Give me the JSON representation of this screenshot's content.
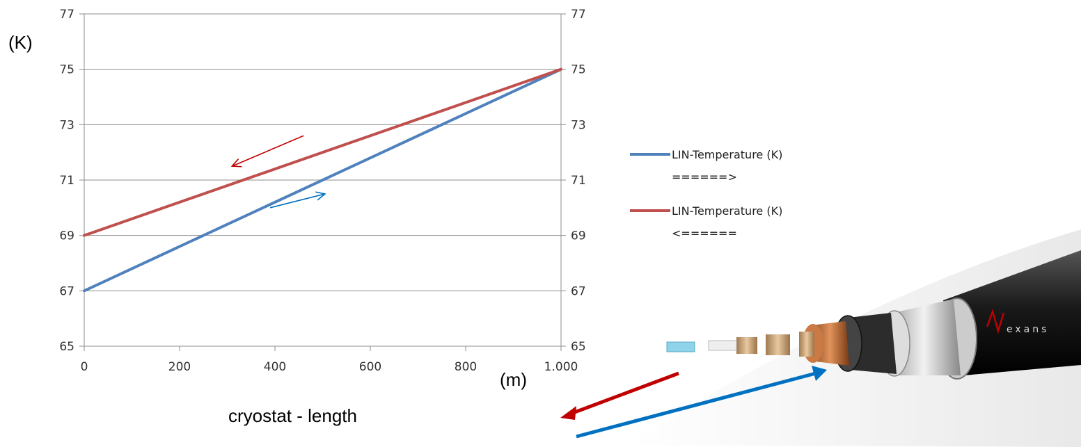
{
  "chart_data": {
    "type": "line",
    "title": "",
    "xlabel": "cryostat - length",
    "ylabel": "",
    "x_unit_label": "(m)",
    "y_unit_label": "(K)",
    "xlim": [
      0,
      1000
    ],
    "ylim": [
      65,
      77
    ],
    "x_ticks": [
      {
        "value": 0,
        "label": "0"
      },
      {
        "value": 200,
        "label": "200"
      },
      {
        "value": 400,
        "label": "400"
      },
      {
        "value": 600,
        "label": "600"
      },
      {
        "value": 800,
        "label": "800"
      },
      {
        "value": 1000,
        "label": "1.000"
      }
    ],
    "y_ticks": [
      {
        "value": 65,
        "label": "65"
      },
      {
        "value": 67,
        "label": "67"
      },
      {
        "value": 69,
        "label": "69"
      },
      {
        "value": 71,
        "label": "71"
      },
      {
        "value": 73,
        "label": "73"
      },
      {
        "value": 75,
        "label": "75"
      },
      {
        "value": 77,
        "label": "77"
      }
    ],
    "grid": "horizontal",
    "secondary_y_axis": true,
    "legend_position": "right",
    "series": [
      {
        "name": "LIN-Temperature (K)",
        "name_line2": "======>",
        "color": "#4f81bd",
        "x": [
          0,
          1000
        ],
        "y": [
          67,
          75
        ]
      },
      {
        "name": "LIN-Temperature (K)",
        "name_line2": "<======",
        "color": "#c0504d",
        "x": [
          0,
          1000
        ],
        "y": [
          69,
          75
        ]
      }
    ],
    "annotations": [
      {
        "type": "arrow",
        "color": "#c00000",
        "from": [
          460,
          72.6
        ],
        "to": [
          310,
          71.5
        ]
      },
      {
        "type": "arrow",
        "color": "#0070c0",
        "from": [
          390,
          70.0
        ],
        "to": [
          505,
          70.5
        ]
      }
    ]
  },
  "image": {
    "description_icon": "superconducting-cable-cross-section-image",
    "brand_text": "exans",
    "arrow_red_color": "#c00000",
    "arrow_blue_color": "#0070c0"
  }
}
